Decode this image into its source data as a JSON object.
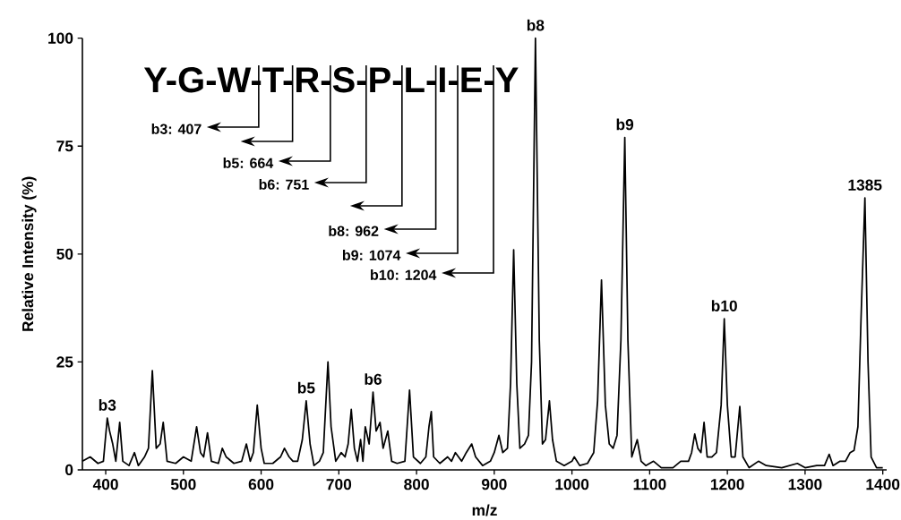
{
  "chart_data": {
    "type": "line",
    "xlabel": "m/z",
    "ylabel": "Relative Intensity (%)",
    "color": "#000000",
    "xlim": [
      370,
      1405
    ],
    "ylim": [
      0,
      100
    ],
    "xticks": [
      400,
      500,
      600,
      700,
      800,
      900,
      1000,
      1100,
      1200,
      1300,
      1400
    ],
    "yticks": [
      0,
      25,
      50,
      75,
      100
    ],
    "x": [
      370,
      380,
      390,
      397,
      402,
      405,
      409,
      413,
      418,
      422,
      430,
      437,
      442,
      450,
      455,
      460,
      465,
      470,
      474,
      479,
      490,
      500,
      510,
      517,
      522,
      526,
      531,
      536,
      545,
      550,
      555,
      565,
      575,
      581,
      586,
      590,
      595,
      600,
      604,
      615,
      625,
      630,
      636,
      641,
      647,
      653,
      658,
      663,
      668,
      675,
      680,
      686,
      690,
      696,
      703,
      708,
      712,
      716,
      720,
      724,
      728,
      731,
      734,
      739,
      744,
      748,
      753,
      757,
      763,
      768,
      775,
      785,
      791,
      796,
      805,
      812,
      816,
      819,
      822,
      830,
      840,
      845,
      850,
      858,
      864,
      871,
      876,
      885,
      895,
      900,
      906,
      911,
      917,
      921,
      925,
      929,
      933,
      939,
      944,
      948,
      953,
      958,
      962,
      966,
      971,
      975,
      980,
      990,
      1000,
      1003,
      1010,
      1020,
      1028,
      1033,
      1038,
      1043,
      1048,
      1053,
      1058,
      1063,
      1068,
      1072,
      1077,
      1084,
      1089,
      1095,
      1105,
      1115,
      1130,
      1140,
      1150,
      1154,
      1158,
      1162,
      1166,
      1170,
      1174,
      1180,
      1186,
      1192,
      1196,
      1200,
      1205,
      1210,
      1216,
      1220,
      1228,
      1240,
      1250,
      1270,
      1290,
      1300,
      1315,
      1325,
      1331,
      1336,
      1345,
      1352,
      1358,
      1363,
      1368,
      1372,
      1377,
      1381,
      1385,
      1392,
      1400
    ],
    "values": [
      2,
      3,
      1.5,
      2,
      12,
      9,
      6,
      2,
      11,
      2,
      1,
      4,
      1,
      3,
      5,
      23,
      5,
      6,
      11,
      2,
      1.5,
      3,
      2,
      10,
      4,
      3,
      8.6,
      2,
      1.5,
      5,
      3,
      1.5,
      2,
      6,
      2,
      4,
      15,
      5,
      1.5,
      1.5,
      3,
      5,
      3,
      2,
      2,
      7,
      16,
      6,
      1,
      2,
      4,
      25,
      10,
      2,
      4,
      3,
      6,
      14,
      5,
      2,
      7,
      2,
      10,
      6,
      18,
      9,
      11,
      5,
      9,
      2,
      1.5,
      2,
      18.5,
      3,
      1.5,
      3,
      10,
      13.5,
      3,
      1.5,
      3,
      2,
      4,
      2,
      4,
      6,
      3,
      1,
      2,
      4,
      8,
      4,
      5,
      20,
      51,
      20,
      5,
      6,
      8,
      25,
      100,
      30,
      6,
      7,
      16,
      7,
      2,
      1,
      2,
      3,
      1,
      1.5,
      4,
      16,
      44,
      15,
      6,
      5,
      8,
      30,
      77,
      30,
      3,
      7,
      2,
      1,
      2,
      0.5,
      0.5,
      2,
      2,
      4,
      8.3,
      5,
      4,
      11,
      3,
      3,
      4,
      15,
      35,
      15,
      3,
      3,
      14.7,
      3,
      0.5,
      2,
      1,
      0.5,
      1.5,
      0.5,
      1,
      1,
      3.6,
      1,
      2,
      2,
      4,
      4.5,
      10,
      35,
      63,
      25,
      3,
      0.5,
      0.5
    ],
    "annotations": [
      "Y-G-W-T-R-S-P-L-I-E-Y",
      "b3: 407",
      "b5: 664",
      "b6: 751",
      "b8: 962",
      "b9: 1074",
      "b10: 1204",
      {
        "text": "b3",
        "x": 402,
        "y": 12
      },
      {
        "text": "b5",
        "x": 658,
        "y": 16
      },
      {
        "text": "b6",
        "x": 744,
        "y": 18
      },
      {
        "text": "b8",
        "x": 953,
        "y": 100
      },
      {
        "text": "b9",
        "x": 1068,
        "y": 77
      },
      {
        "text": "b10",
        "x": 1196,
        "y": 35
      },
      {
        "text": "1385",
        "x": 1377,
        "y": 63
      }
    ]
  }
}
